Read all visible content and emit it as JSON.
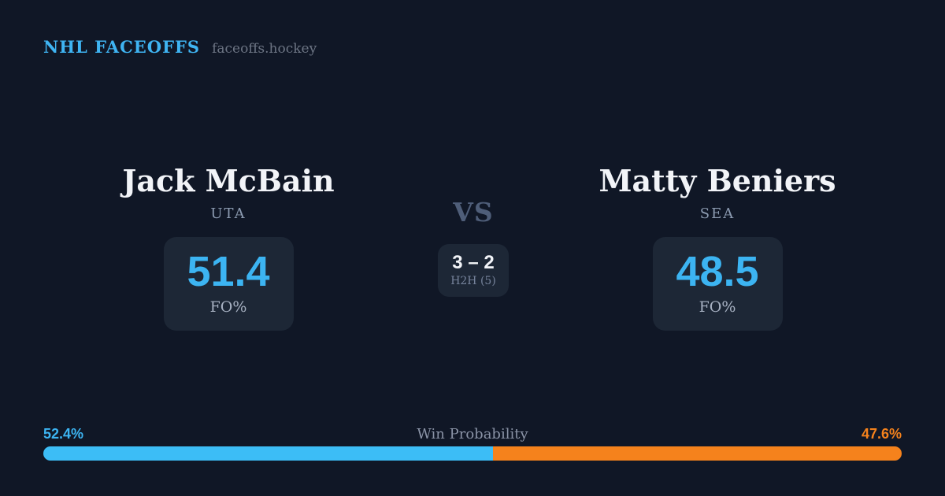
{
  "header": {
    "brand": "NHL FACEOFFS",
    "site": "faceoffs.hockey"
  },
  "players": [
    {
      "name": "Jack McBain",
      "team": "UTA",
      "fo_pct": "51.4",
      "stat_label": "FO%",
      "win_prob_label": "52.4%",
      "win_prob_value": 52.4,
      "bar_color": "#3cbdf6"
    },
    {
      "name": "Matty Beniers",
      "team": "SEA",
      "fo_pct": "48.5",
      "stat_label": "FO%",
      "win_prob_label": "47.6%",
      "win_prob_value": 47.6,
      "bar_color": "#f5821c"
    }
  ],
  "center": {
    "vs_label": "VS",
    "h2h_score": "3 – 2",
    "h2h_label": "H2H (5)"
  },
  "win_probability": {
    "title": "Win Probability",
    "left_label": "52.4%",
    "left_value": 52.4,
    "right_label": "47.6%",
    "right_value": 47.6
  },
  "colors": {
    "background": "#101726",
    "card_background": "#1d2736",
    "accent_blue": "#3cb4f2",
    "accent_orange": "#f5821c",
    "text_primary": "#f2f4f8",
    "text_muted": "#8c9bb1"
  },
  "chart_data": [
    {
      "type": "bar",
      "title": "Faceoff Percentage comparison",
      "categories": [
        "Jack McBain (UTA)",
        "Matty Beniers (SEA)"
      ],
      "values": [
        51.4,
        48.5
      ],
      "ylabel": "FO%",
      "legend_position": "none",
      "grid": false
    },
    {
      "type": "bar",
      "title": "Win Probability",
      "categories": [
        "Jack McBain",
        "Matty Beniers"
      ],
      "values": [
        52.4,
        47.6
      ],
      "xlim": [
        0,
        100
      ],
      "note": "single stacked horizontal bar, blue left segment vs orange right segment",
      "annotations": [
        "52.4%",
        "47.6%",
        "H2H (5): 3 – 2"
      ]
    }
  ]
}
